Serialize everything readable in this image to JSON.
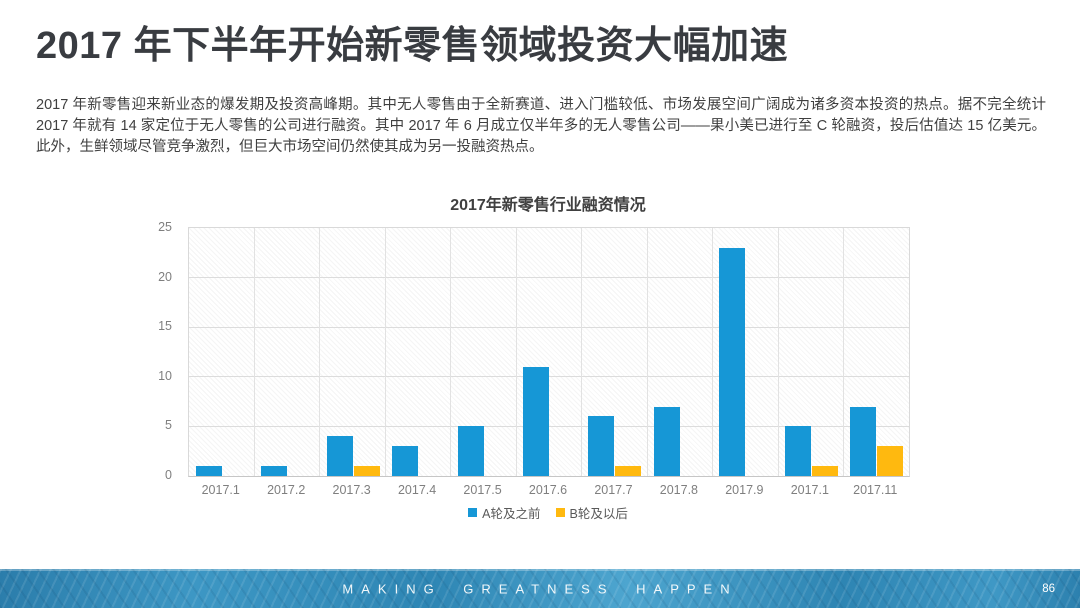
{
  "slide": {
    "title": "2017 年下半年开始新零售领域投资大幅加速",
    "body": "2017 年新零售迎来新业态的爆发期及投资高峰期。其中无人零售由于全新赛道、进入门槛较低、市场发展空间广阔成为诸多资本投资的热点。据不完全统计 2017 年就有 14 家定位于无人零售的公司进行融资。其中 2017 年 6 月成立仅半年多的无人零售公司——果小美已进行至 C 轮融资，投后估值达 15 亿美元。此外，生鲜领域尽管竞争激烈，但巨大市场空间仍然使其成为另一投融资热点。"
  },
  "chart_data": {
    "type": "bar",
    "title": "2017年新零售行业融资情况",
    "categories": [
      "2017.1",
      "2017.2",
      "2017.3",
      "2017.4",
      "2017.5",
      "2017.6",
      "2017.7",
      "2017.8",
      "2017.9",
      "2017.1",
      "2017.11"
    ],
    "series": [
      {
        "name": "A轮及之前",
        "color": "#1697d6",
        "values": [
          1,
          1,
          4,
          3,
          5,
          11,
          6,
          7,
          23,
          5,
          7
        ]
      },
      {
        "name": "B轮及以后",
        "color": "#ffb90f",
        "values": [
          0,
          0,
          1,
          0,
          0,
          0,
          1,
          0,
          0,
          1,
          3
        ]
      }
    ],
    "xlabel": "",
    "ylabel": "",
    "ylim": [
      0,
      25
    ],
    "yticks": [
      0,
      5,
      10,
      15,
      20,
      25
    ],
    "grid": true,
    "legend_position": "bottom"
  },
  "footer": {
    "slogan": "MAKING GREATNESS HAPPEN",
    "page_number": "86",
    "background_color": "#2e86b8"
  }
}
